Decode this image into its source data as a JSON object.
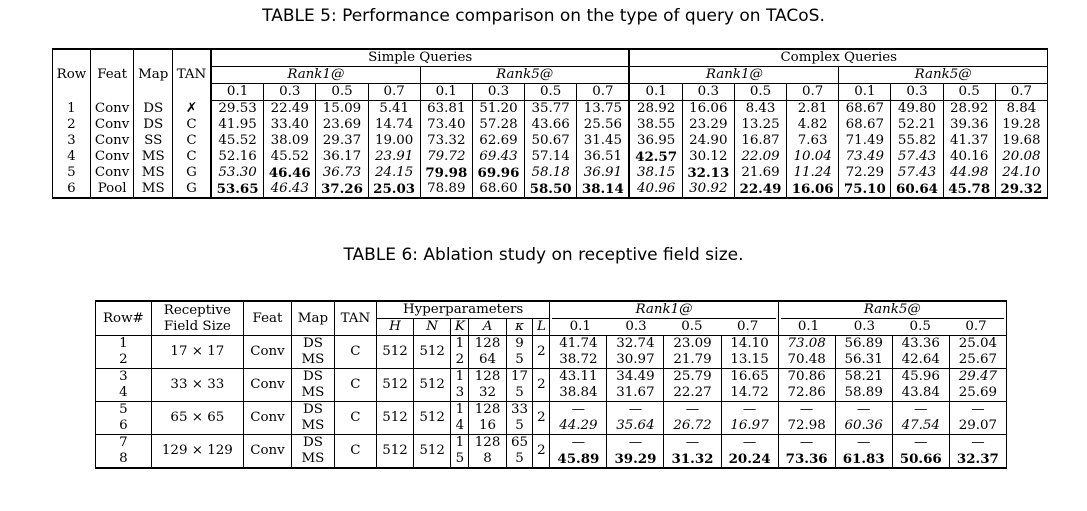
{
  "table5": {
    "caption": "TABLE 5: Performance comparison on the type of query on TACoS.",
    "header": {
      "row": "Row",
      "feat": "Feat",
      "map": "Map",
      "tan": "TAN",
      "simple": "Simple Queries",
      "complex": "Complex Queries",
      "rank1": "Rank1@",
      "rank5": "Rank5@",
      "thresholds": [
        "0.1",
        "0.3",
        "0.5",
        "0.7"
      ]
    },
    "rows": [
      {
        "row": "1",
        "feat": "Conv",
        "map": "DS",
        "tan": "✗",
        "vals": [
          "29.53",
          "22.49",
          "15.09",
          "5.41",
          "63.81",
          "51.20",
          "35.77",
          "13.75",
          "28.92",
          "16.06",
          "8.43",
          "2.81",
          "68.67",
          "49.80",
          "28.92",
          "8.84"
        ],
        "styles": [
          "",
          "",
          "",
          "",
          "",
          "",
          "",
          "",
          "",
          "",
          "",
          "",
          "",
          "",
          "",
          ""
        ]
      },
      {
        "row": "2",
        "feat": "Conv",
        "map": "DS",
        "tan": "C",
        "vals": [
          "41.95",
          "33.40",
          "23.69",
          "14.74",
          "73.40",
          "57.28",
          "43.66",
          "25.56",
          "38.55",
          "23.29",
          "13.25",
          "4.82",
          "68.67",
          "52.21",
          "39.36",
          "19.28"
        ],
        "styles": [
          "",
          "",
          "",
          "",
          "",
          "",
          "",
          "",
          "",
          "",
          "",
          "",
          "",
          "",
          "",
          ""
        ]
      },
      {
        "row": "3",
        "feat": "Conv",
        "map": "SS",
        "tan": "C",
        "vals": [
          "45.52",
          "38.09",
          "29.37",
          "19.00",
          "73.32",
          "62.69",
          "50.67",
          "31.45",
          "36.95",
          "24.90",
          "16.87",
          "7.63",
          "71.49",
          "55.82",
          "41.37",
          "19.68"
        ],
        "styles": [
          "",
          "",
          "",
          "",
          "",
          "",
          "",
          "",
          "",
          "",
          "",
          "",
          "",
          "",
          "",
          ""
        ]
      },
      {
        "row": "4",
        "feat": "Conv",
        "map": "MS",
        "tan": "C",
        "vals": [
          "52.16",
          "45.52",
          "36.17",
          "23.91",
          "79.72",
          "69.43",
          "57.14",
          "36.51",
          "42.57",
          "30.12",
          "22.09",
          "10.04",
          "73.49",
          "57.43",
          "40.16",
          "20.08"
        ],
        "styles": [
          "",
          "",
          "",
          "it",
          "it",
          "it",
          "",
          "",
          "bd",
          "",
          "it",
          "it",
          "it",
          "it",
          "",
          "it"
        ]
      },
      {
        "row": "5",
        "feat": "Conv",
        "map": "MS",
        "tan": "G",
        "vals": [
          "53.30",
          "46.46",
          "36.73",
          "24.15",
          "79.98",
          "69.96",
          "58.18",
          "36.91",
          "38.15",
          "32.13",
          "21.69",
          "11.24",
          "72.29",
          "57.43",
          "44.98",
          "24.10"
        ],
        "styles": [
          "it",
          "bd",
          "it",
          "it",
          "bd",
          "bd",
          "it",
          "it",
          "it",
          "bd",
          "",
          "it",
          "",
          "it",
          "it",
          "it"
        ]
      },
      {
        "row": "6",
        "feat": "Pool",
        "map": "MS",
        "tan": "G",
        "vals": [
          "53.65",
          "46.43",
          "37.26",
          "25.03",
          "78.89",
          "68.60",
          "58.50",
          "38.14",
          "40.96",
          "30.92",
          "22.49",
          "16.06",
          "75.10",
          "60.64",
          "45.78",
          "29.32"
        ],
        "styles": [
          "bd",
          "it",
          "bd",
          "bd",
          "",
          "",
          "bd",
          "bd",
          "it",
          "it",
          "bd",
          "bd",
          "bd",
          "bd",
          "bd",
          "bd"
        ]
      }
    ]
  },
  "table6": {
    "caption": "TABLE 6: Ablation study on receptive field size.",
    "header": {
      "row": "Row#",
      "rf_line1": "Receptive",
      "rf_line2": "Field Size",
      "feat": "Feat",
      "map": "Map",
      "tan": "TAN",
      "hyper": "Hyperparameters",
      "hp_cols": [
        "H",
        "N",
        "K",
        "A",
        "κ",
        "L"
      ],
      "rank1": "Rank1@",
      "rank5": "Rank5@",
      "thresholds": [
        "0.1",
        "0.3",
        "0.5",
        "0.7"
      ]
    },
    "groups": [
      {
        "rows": [
          "1",
          "2"
        ],
        "rf": "17 × 17",
        "feat": "Conv",
        "maps": [
          "DS",
          "MS"
        ],
        "tan": "C",
        "h": "512",
        "n": "512",
        "k": [
          "1",
          "2"
        ],
        "a": [
          "128",
          "64"
        ],
        "kappa": [
          "9",
          "5"
        ],
        "l": "2",
        "vals": [
          [
            "41.74",
            "32.74",
            "23.09",
            "14.10",
            "73.08",
            "56.89",
            "43.36",
            "25.04"
          ],
          [
            "38.72",
            "30.97",
            "21.79",
            "13.15",
            "70.48",
            "56.31",
            "42.64",
            "25.67"
          ]
        ],
        "styles": [
          [
            "",
            "",
            "",
            "",
            "it",
            "",
            "",
            ""
          ],
          [
            "",
            "",
            "",
            "",
            "",
            "",
            "",
            ""
          ]
        ]
      },
      {
        "rows": [
          "3",
          "4"
        ],
        "rf": "33 × 33",
        "feat": "Conv",
        "maps": [
          "DS",
          "MS"
        ],
        "tan": "C",
        "h": "512",
        "n": "512",
        "k": [
          "1",
          "3"
        ],
        "a": [
          "128",
          "32"
        ],
        "kappa": [
          "17",
          "5"
        ],
        "l": "2",
        "vals": [
          [
            "43.11",
            "34.49",
            "25.79",
            "16.65",
            "70.86",
            "58.21",
            "45.96",
            "29.47"
          ],
          [
            "38.84",
            "31.67",
            "22.27",
            "14.72",
            "72.86",
            "58.89",
            "43.84",
            "25.69"
          ]
        ],
        "styles": [
          [
            "",
            "",
            "",
            "",
            "",
            "",
            "",
            "it"
          ],
          [
            "",
            "",
            "",
            "",
            "",
            "",
            "",
            ""
          ]
        ]
      },
      {
        "rows": [
          "5",
          "6"
        ],
        "rf": "65 × 65",
        "feat": "Conv",
        "maps": [
          "DS",
          "MS"
        ],
        "tan": "C",
        "h": "512",
        "n": "512",
        "k": [
          "1",
          "4"
        ],
        "a": [
          "128",
          "16"
        ],
        "kappa": [
          "33",
          "5"
        ],
        "l": "2",
        "vals": [
          [
            "—",
            "—",
            "—",
            "—",
            "—",
            "—",
            "—",
            "—"
          ],
          [
            "44.29",
            "35.64",
            "26.72",
            "16.97",
            "72.98",
            "60.36",
            "47.54",
            "29.07"
          ]
        ],
        "styles": [
          [
            "",
            "",
            "",
            "",
            "",
            "",
            "",
            ""
          ],
          [
            "it",
            "it",
            "it",
            "it",
            "",
            "it",
            "it",
            ""
          ]
        ]
      },
      {
        "rows": [
          "7",
          "8"
        ],
        "rf": "129 × 129",
        "feat": "Conv",
        "maps": [
          "DS",
          "MS"
        ],
        "tan": "C",
        "h": "512",
        "n": "512",
        "k": [
          "1",
          "5"
        ],
        "a": [
          "128",
          "8"
        ],
        "kappa": [
          "65",
          "5"
        ],
        "l": "2",
        "vals": [
          [
            "—",
            "—",
            "—",
            "—",
            "—",
            "—",
            "—",
            "—"
          ],
          [
            "45.89",
            "39.29",
            "31.32",
            "20.24",
            "73.36",
            "61.83",
            "50.66",
            "32.37"
          ]
        ],
        "styles": [
          [
            "",
            "",
            "",
            "",
            "",
            "",
            "",
            ""
          ],
          [
            "bd",
            "bd",
            "bd",
            "bd",
            "bd",
            "bd",
            "bd",
            "bd"
          ]
        ]
      }
    ]
  }
}
